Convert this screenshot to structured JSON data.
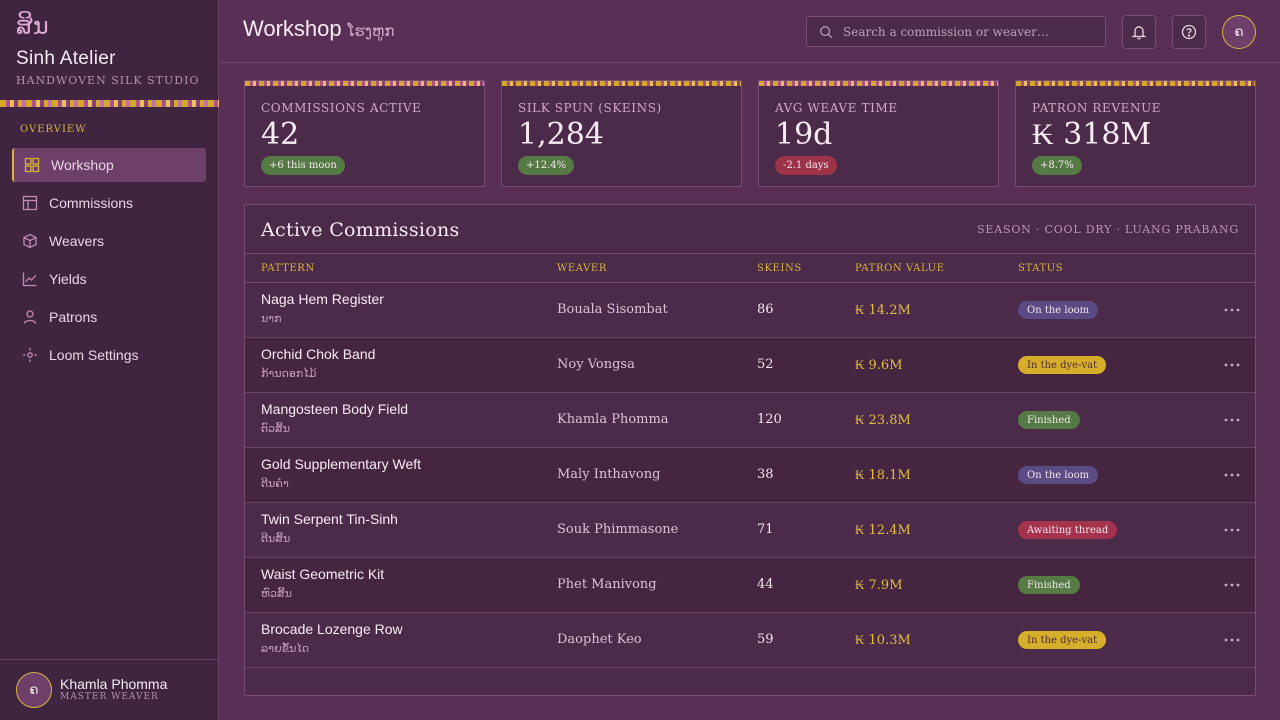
{
  "brand": {
    "glyph": "ສິນ",
    "name": "Sinh Atelier",
    "subtitle": "Handwoven Silk Studio"
  },
  "nav": {
    "section": "OVERVIEW",
    "items": [
      {
        "label": "Workshop",
        "icon": "grid-icon",
        "active": true
      },
      {
        "label": "Commissions",
        "icon": "table-icon"
      },
      {
        "label": "Weavers",
        "icon": "cube-icon"
      },
      {
        "label": "Yields",
        "icon": "line-chart-icon"
      },
      {
        "label": "Patrons",
        "icon": "person-icon"
      },
      {
        "label": "Loom Settings",
        "icon": "gear-icon"
      }
    ]
  },
  "user": {
    "initial": "ຄ",
    "name": "Khamla Phomma",
    "role": "MASTER WEAVER"
  },
  "header": {
    "title": "Workshop",
    "title_lao": "ໂຮງຫູກ",
    "search_placeholder": "Search a commission or weaver…"
  },
  "kpis": [
    {
      "label": "COMMISSIONS ACTIVE",
      "value": "42",
      "badge": "+6 this moon",
      "trend": "up"
    },
    {
      "label": "SILK SPUN (SKEINS)",
      "value": "1,284",
      "badge": "+12.4%",
      "trend": "up"
    },
    {
      "label": "AVG WEAVE TIME",
      "value": "19d",
      "badge": "-2.1 days",
      "trend": "down"
    },
    {
      "label": "PATRON REVENUE",
      "value": "₭ 318M",
      "badge": "+8.7%",
      "trend": "up"
    }
  ],
  "table": {
    "title": "Active Commissions",
    "meta": "Season · Cool Dry · Luang Prabang",
    "columns": [
      "PATTERN",
      "WEAVER",
      "SKEINS",
      "PATRON VALUE",
      "STATUS"
    ],
    "rows": [
      {
        "pattern": "Naga Hem Register",
        "pattern_lao": "ນາກ",
        "weaver": "Bouala Sisombat",
        "skeins": "86",
        "value": "₭ 14.2M",
        "status": "On the loom",
        "status_kind": "loom"
      },
      {
        "pattern": "Orchid Chok Band",
        "pattern_lao": "ກ້ານດອກໄມ້",
        "weaver": "Noy Vongsa",
        "skeins": "52",
        "value": "₭ 9.6M",
        "status": "In the dye-vat",
        "status_kind": "dye"
      },
      {
        "pattern": "Mangosteen Body Field",
        "pattern_lao": "ຕົວສິ້ນ",
        "weaver": "Khamla Phomma",
        "skeins": "120",
        "value": "₭ 23.8M",
        "status": "Finished",
        "status_kind": "done"
      },
      {
        "pattern": "Gold Supplementary Weft",
        "pattern_lao": "ຕີນຄໍາ",
        "weaver": "Maly Inthavong",
        "skeins": "38",
        "value": "₭ 18.1M",
        "status": "On the loom",
        "status_kind": "loom"
      },
      {
        "pattern": "Twin Serpent Tin-Sinh",
        "pattern_lao": "ຕີນສິ້ນ",
        "weaver": "Souk Phimmasone",
        "skeins": "71",
        "value": "₭ 12.4M",
        "status": "Awaiting thread",
        "status_kind": "await"
      },
      {
        "pattern": "Waist Geometric Kit",
        "pattern_lao": "ຫົວສິ້ນ",
        "weaver": "Phet Manivong",
        "skeins": "44",
        "value": "₭ 7.9M",
        "status": "Finished",
        "status_kind": "done"
      },
      {
        "pattern": "Brocade Lozenge Row",
        "pattern_lao": "ລາຍຂັ້ນໄດ",
        "weaver": "Daophet Keo",
        "skeins": "59",
        "value": "₭ 10.3M",
        "status": "In the dye-vat",
        "status_kind": "dye"
      }
    ]
  },
  "colors": {
    "accent_gold": "#d8b43a",
    "background": "#5a2f55",
    "sidebar": "#3f2540",
    "panel": "#4c2a49"
  }
}
